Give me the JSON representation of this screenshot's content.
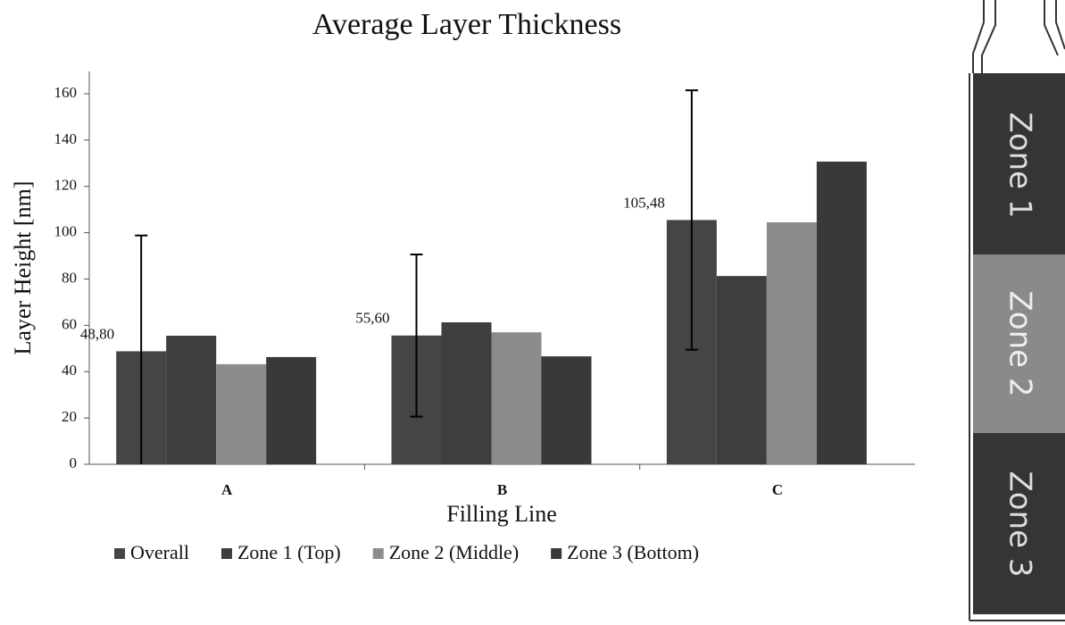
{
  "chart_data": {
    "type": "bar",
    "title": "Average Layer Thickness",
    "x_label": "Filling Line",
    "y_label": "Layer Height [nm]",
    "categories": [
      "A",
      "B",
      "C"
    ],
    "series": [
      {
        "name": "Overall",
        "color": "#454545",
        "values": [
          48.8,
          55.6,
          105.48
        ],
        "value_labels": [
          "48,80",
          "55,60",
          "105,48"
        ],
        "errors": [
          50,
          35,
          56
        ]
      },
      {
        "name": "Zone 1 (Top)",
        "color": "#3e3e3e",
        "values": [
          55.5,
          61.3,
          81.3
        ]
      },
      {
        "name": "Zone 2 (Middle)",
        "color": "#8c8c8c",
        "values": [
          43.2,
          57,
          104.5
        ]
      },
      {
        "name": "Zone 3 (Bottom)",
        "color": "#393939",
        "values": [
          46.3,
          46.6,
          130.7
        ]
      }
    ],
    "ylim": [
      0,
      160
    ],
    "yticks": [
      0,
      20,
      40,
      60,
      80,
      100,
      120,
      140,
      160
    ],
    "grid": false,
    "legend": "bottom"
  },
  "diagram": {
    "labels": [
      "Zone 1",
      "Zone 2",
      "Zone 3"
    ]
  }
}
